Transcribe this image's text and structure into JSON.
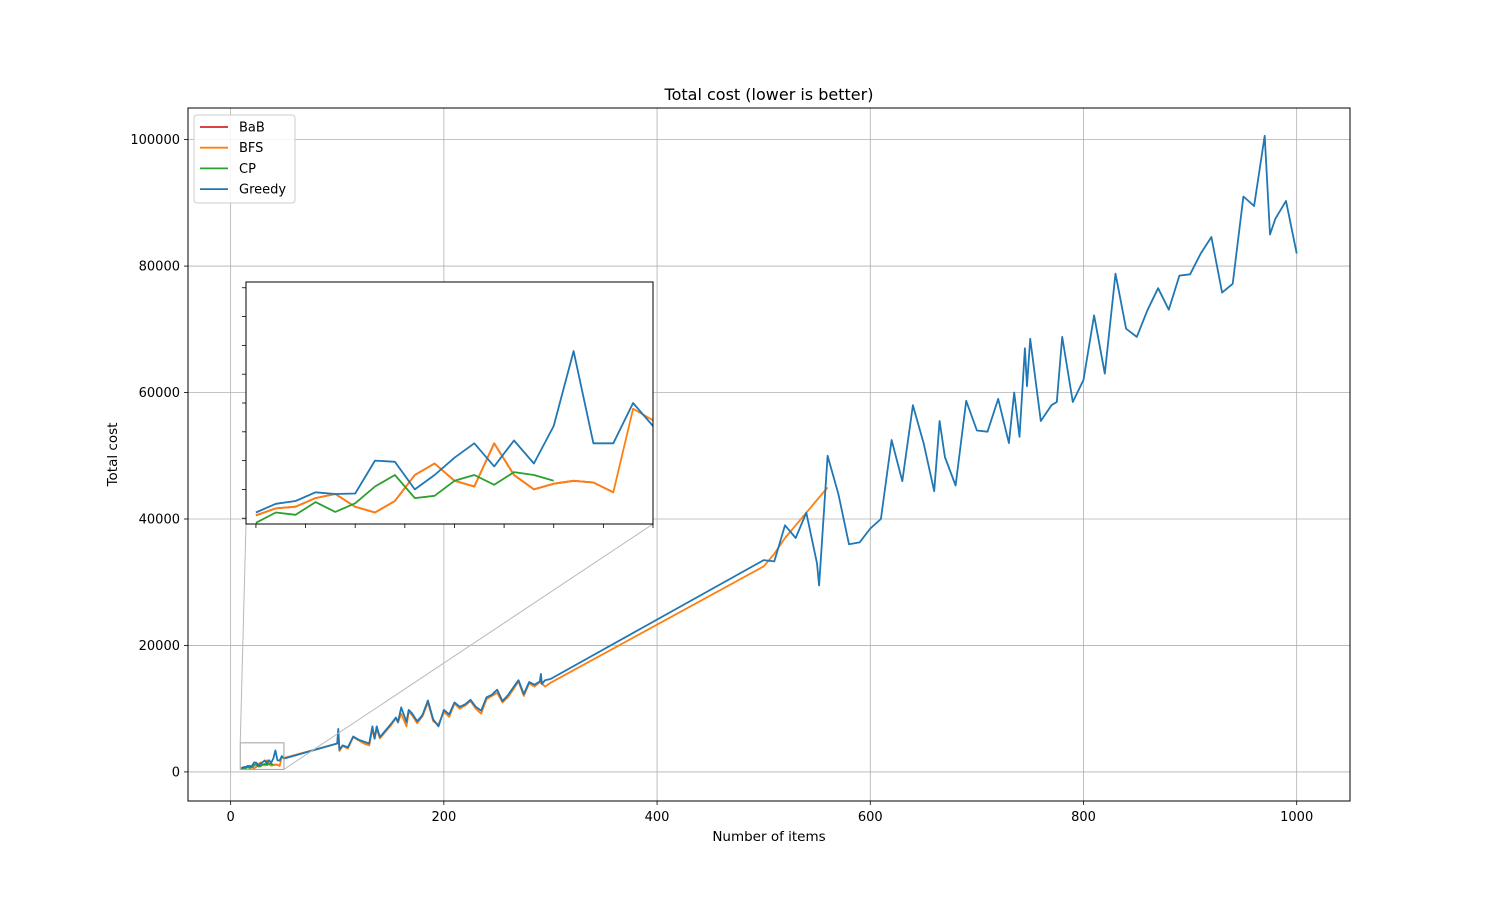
{
  "chart_data": {
    "type": "line",
    "title": "Total cost (lower is better)",
    "xlabel": "Number of items",
    "ylabel": "Total cost",
    "xlim": [
      -40,
      1050
    ],
    "ylim": [
      -4600,
      105000
    ],
    "x_ticks": [
      0,
      200,
      400,
      600,
      800,
      1000
    ],
    "y_ticks": [
      0,
      20000,
      40000,
      60000,
      80000,
      100000
    ],
    "x_tick_labels": [
      "0",
      "200",
      "400",
      "600",
      "800",
      "1000"
    ],
    "y_tick_labels": [
      "0",
      "20000",
      "40000",
      "60000",
      "80000",
      "100000"
    ],
    "grid": true,
    "legend_position": "top-left",
    "series": [
      {
        "name": "BaB",
        "color": "#d62728",
        "x": [
          10,
          12,
          14,
          16,
          18,
          20,
          22,
          24,
          26,
          28,
          30,
          32,
          34,
          36,
          38,
          40,
          42,
          44,
          46
        ],
        "y": [
          550,
          670,
          700,
          850,
          920,
          700,
          600,
          800,
          1250,
          1450,
          1150,
          1050,
          1800,
          1250,
          1000,
          1100,
          1150,
          1120,
          950
        ]
      },
      {
        "name": "BFS",
        "color": "#ff7f0e",
        "x": [
          10,
          12,
          14,
          16,
          18,
          20,
          22,
          24,
          26,
          28,
          30,
          32,
          34,
          36,
          38,
          40,
          42,
          44,
          46,
          48,
          50,
          100,
          101,
          102,
          105,
          110,
          115,
          120,
          125,
          130,
          133,
          135,
          137,
          140,
          145,
          150,
          155,
          157,
          160,
          165,
          167,
          170,
          175,
          180,
          185,
          190,
          195,
          200,
          205,
          210,
          215,
          220,
          225,
          230,
          235,
          240,
          245,
          250,
          255,
          260,
          265,
          270,
          275,
          280,
          285,
          290,
          295,
          300,
          500,
          510,
          520,
          530,
          540,
          550,
          560
        ],
        "y": [
          550,
          670,
          700,
          850,
          920,
          700,
          600,
          800,
          1250,
          1450,
          1150,
          1050,
          1800,
          1250,
          1000,
          1100,
          1150,
          1120,
          950,
          2400,
          2200,
          4500,
          6300,
          3300,
          4100,
          3700,
          5500,
          5000,
          4500,
          4200,
          6800,
          5200,
          6800,
          5300,
          6300,
          7300,
          8500,
          7800,
          9200,
          7200,
          9500,
          9000,
          7700,
          8800,
          11000,
          8000,
          7500,
          9500,
          8700,
          10800,
          10000,
          10500,
          11200,
          10000,
          9200,
          11500,
          12000,
          12500,
          11000,
          11800,
          13000,
          14300,
          12000,
          14000,
          13500,
          14200,
          13500,
          14100,
          32500,
          34500,
          37000,
          39000,
          41000,
          43000,
          45000
        ]
      },
      {
        "name": "CP",
        "color": "#2ca02c",
        "x": [
          10,
          12,
          14,
          16,
          18,
          20,
          22,
          24,
          26,
          28,
          30,
          32,
          34,
          36,
          38,
          40
        ],
        "y": [
          420,
          600,
          560,
          780,
          610,
          760,
          1050,
          1250,
          850,
          890,
          1150,
          1250,
          1080,
          1300,
          1250,
          1150
        ]
      },
      {
        "name": "Greedy",
        "color": "#1f77b4",
        "x": [
          10,
          12,
          14,
          16,
          18,
          20,
          22,
          24,
          26,
          28,
          30,
          32,
          34,
          36,
          38,
          40,
          42,
          44,
          46,
          48,
          50,
          100,
          101,
          102,
          105,
          110,
          115,
          120,
          125,
          130,
          133,
          135,
          137,
          140,
          145,
          150,
          155,
          157,
          160,
          165,
          167,
          170,
          175,
          180,
          185,
          190,
          195,
          200,
          205,
          210,
          215,
          220,
          225,
          230,
          235,
          240,
          245,
          250,
          255,
          260,
          265,
          270,
          275,
          280,
          285,
          290,
          291,
          292,
          295,
          300,
          500,
          510,
          520,
          530,
          540,
          550,
          552,
          560,
          570,
          580,
          590,
          600,
          610,
          620,
          630,
          640,
          650,
          660,
          665,
          670,
          680,
          690,
          700,
          710,
          720,
          730,
          735,
          740,
          745,
          747,
          750,
          760,
          770,
          775,
          780,
          790,
          800,
          810,
          820,
          830,
          840,
          850,
          860,
          870,
          880,
          890,
          900,
          910,
          920,
          930,
          940,
          950,
          960,
          970,
          975,
          980,
          990,
          1000
        ],
        "y": [
          600,
          750,
          800,
          950,
          920,
          930,
          1500,
          1480,
          1000,
          1250,
          1550,
          1800,
          1400,
          1850,
          1450,
          2100,
          3400,
          1800,
          1800,
          2500,
          2100,
          4500,
          6800,
          3500,
          4200,
          3900,
          5600,
          5100,
          4800,
          4500,
          7200,
          5300,
          7200,
          5500,
          6500,
          7500,
          8600,
          7900,
          10200,
          7900,
          9800,
          9300,
          8000,
          9000,
          11300,
          8300,
          7200,
          9800,
          9100,
          11000,
          10300,
          10700,
          11400,
          10300,
          9700,
          11800,
          12200,
          13000,
          11200,
          12100,
          13300,
          14500,
          12300,
          14200,
          13800,
          14300,
          15500,
          13900,
          14500,
          14700,
          33500,
          33300,
          39000,
          37000,
          41000,
          33000,
          29500,
          50000,
          44000,
          36000,
          36300,
          38500,
          40000,
          52500,
          46000,
          58000,
          52000,
          44400,
          55500,
          49800,
          45300,
          58700,
          54000,
          53800,
          59000,
          52000,
          60000,
          53000,
          67000,
          61000,
          68500,
          55500,
          58000,
          58500,
          68800,
          58500,
          62000,
          72200,
          63000,
          78800,
          70100,
          68800,
          73000,
          76500,
          73100,
          78500,
          78700,
          82000,
          84600,
          75800,
          77200,
          91000,
          89500,
          100600,
          85000,
          87500,
          90300,
          82000
        ]
      }
    ],
    "inset": {
      "xlim": [
        9,
        50
      ],
      "ylim": [
        400,
        4600
      ]
    }
  }
}
